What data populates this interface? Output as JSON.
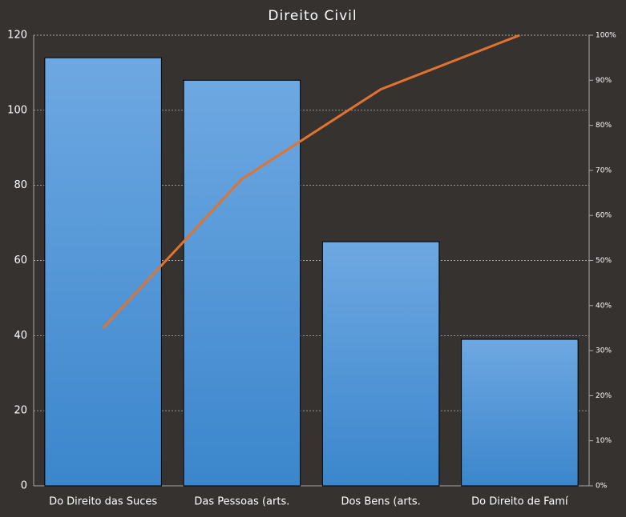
{
  "chart_data": {
    "type": "pareto",
    "title": "Direito Civil",
    "categories": [
      "Do Direito das Suces",
      "Das Pessoas (arts.",
      "Dos Bens (arts.",
      "Do Direito de Famí"
    ],
    "series": [
      {
        "type": "bar",
        "color": "#4a90d6",
        "values": [
          114,
          108,
          65,
          39
        ]
      },
      {
        "type": "line",
        "axis": "y2",
        "color": "#e0742f",
        "values": [
          35,
          68.1,
          88,
          100
        ]
      }
    ],
    "ylim": [
      0,
      120
    ],
    "yticks": [
      0,
      20,
      40,
      60,
      80,
      100,
      120
    ],
    "y2lim": [
      0,
      100
    ],
    "y2ticks": [
      {
        "value": 0,
        "label": "0%"
      },
      {
        "value": 10,
        "label": "10%"
      },
      {
        "value": 20,
        "label": "20%"
      },
      {
        "value": 30,
        "label": "30%"
      },
      {
        "value": 40,
        "label": "40%"
      },
      {
        "value": 50,
        "label": "50%"
      },
      {
        "value": 60,
        "label": "60%"
      },
      {
        "value": 70,
        "label": "70%"
      },
      {
        "value": 80,
        "label": "80%"
      },
      {
        "value": 90,
        "label": "90%"
      },
      {
        "value": 100,
        "label": "100%"
      }
    ],
    "grid": true
  }
}
